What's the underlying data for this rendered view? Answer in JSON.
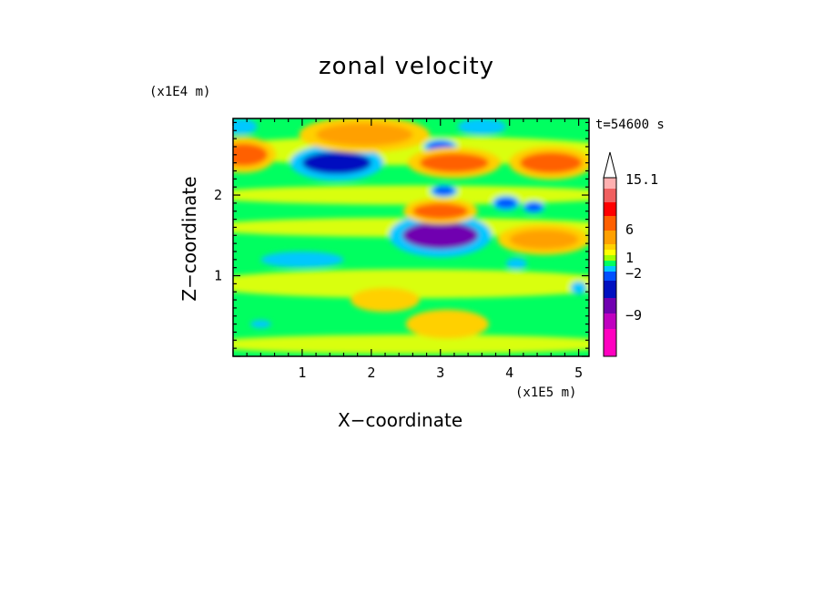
{
  "chart_data": {
    "type": "heatmap",
    "title": "zonal velocity",
    "xlabel": "X−coordinate",
    "ylabel": "Z−coordinate",
    "x_unit": "(x1E5 m)",
    "y_unit": "(x1E4 m)",
    "time_label": "t=54600 s",
    "xlim": [
      0,
      5.15
    ],
    "ylim": [
      0,
      2.95
    ],
    "x_ticks": [
      1,
      2,
      3,
      4,
      5
    ],
    "y_ticks": [
      1,
      2
    ],
    "colorbar": {
      "tick_labels": [
        "15.1",
        "6",
        "1",
        "−2",
        "−9"
      ],
      "tick_values": [
        15.1,
        6,
        1,
        -2,
        -9
      ],
      "levels": [
        {
          "color": "#ff00c0"
        },
        {
          "color": "#c000c0"
        },
        {
          "color": "#7000b0"
        },
        {
          "color": "#0010c0"
        },
        {
          "color": "#0050ff"
        },
        {
          "color": "#00c8ff"
        },
        {
          "color": "#00ff60"
        },
        {
          "color": "#a0ff00"
        },
        {
          "color": "#ffff00"
        },
        {
          "color": "#ffd000"
        },
        {
          "color": "#ffa000"
        },
        {
          "color": "#ff6000"
        },
        {
          "color": "#ff0000"
        },
        {
          "color": "#f06060"
        },
        {
          "color": "#ffb0b0"
        }
      ],
      "extend_top_color": "#ffffff"
    },
    "features": [
      {
        "x": 1.5,
        "z": 2.4,
        "value": -6,
        "w": 0.5,
        "h": 0.14
      },
      {
        "x": 3.0,
        "z": 1.5,
        "value": -7,
        "w": 0.55,
        "h": 0.17
      },
      {
        "x": 3.0,
        "z": 2.6,
        "value": -4,
        "w": 0.18,
        "h": 0.06
      },
      {
        "x": 3.05,
        "z": 2.05,
        "value": -3,
        "w": 0.15,
        "h": 0.05
      },
      {
        "x": 3.95,
        "z": 1.9,
        "value": -4,
        "w": 0.15,
        "h": 0.06
      },
      {
        "x": 4.35,
        "z": 1.85,
        "value": -3,
        "w": 0.12,
        "h": 0.05
      },
      {
        "x": 0.15,
        "z": 2.5,
        "value": 4,
        "w": 0.35,
        "h": 0.14
      },
      {
        "x": 1.9,
        "z": 2.75,
        "value": 3,
        "w": 0.7,
        "h": 0.14
      },
      {
        "x": 3.2,
        "z": 2.4,
        "value": 4,
        "w": 0.5,
        "h": 0.12
      },
      {
        "x": 3.0,
        "z": 1.8,
        "value": 5,
        "w": 0.4,
        "h": 0.1
      },
      {
        "x": 4.6,
        "z": 2.4,
        "value": 4,
        "w": 0.45,
        "h": 0.13
      },
      {
        "x": 4.5,
        "z": 1.45,
        "value": 3,
        "w": 0.5,
        "h": 0.12
      },
      {
        "x": 2.2,
        "z": 0.7,
        "value": 2,
        "w": 0.5,
        "h": 0.15
      },
      {
        "x": 3.1,
        "z": 0.4,
        "value": 2,
        "w": 0.6,
        "h": 0.18
      },
      {
        "x": 1.0,
        "z": 1.2,
        "value": -1,
        "w": 0.6,
        "h": 0.1
      },
      {
        "x": 0.4,
        "z": 0.4,
        "value": -2,
        "w": 0.15,
        "h": 0.05
      },
      {
        "x": 0.1,
        "z": 2.85,
        "value": -2,
        "w": 0.25,
        "h": 0.1
      },
      {
        "x": 3.6,
        "z": 2.85,
        "value": -2,
        "w": 0.35,
        "h": 0.1
      },
      {
        "x": 4.1,
        "z": 1.15,
        "value": -2,
        "w": 0.15,
        "h": 0.07
      },
      {
        "x": 5.0,
        "z": 0.85,
        "value": -2,
        "w": 0.12,
        "h": 0.08
      }
    ]
  }
}
